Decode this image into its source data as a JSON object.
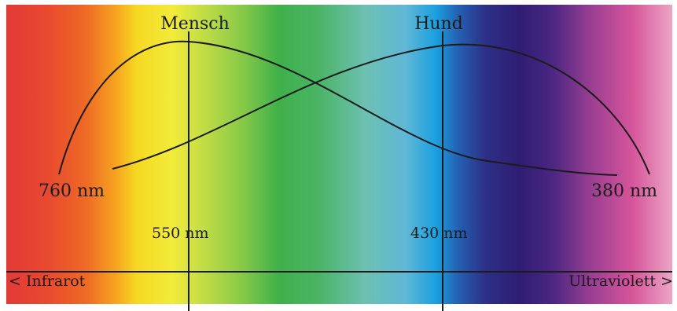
{
  "labels": {
    "human": "Mensch",
    "dog": "Hund",
    "wavelength_long_end": "760 nm",
    "wavelength_short_end": "380 nm",
    "human_peak": "550 nm",
    "dog_peak": "430 nm",
    "infrared": "< Infrarot",
    "ultraviolet": "Ultraviolett >"
  }
}
